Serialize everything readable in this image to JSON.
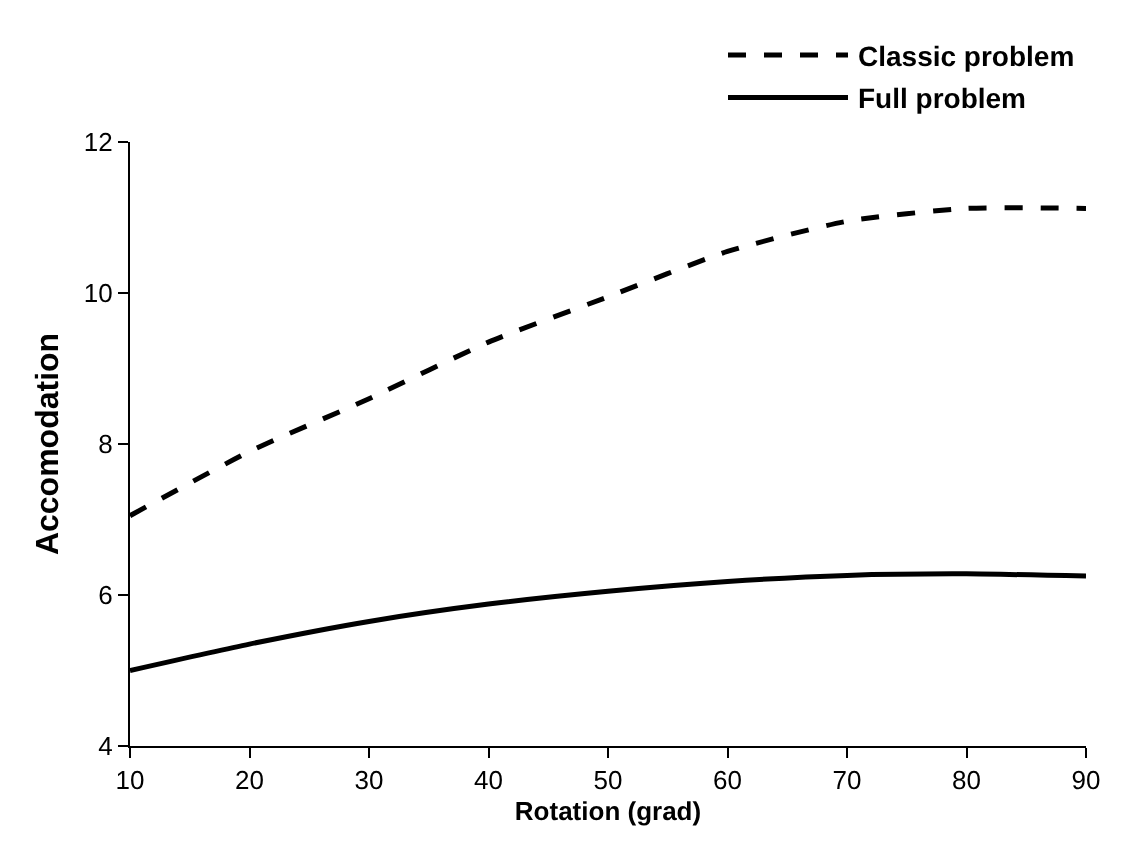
{
  "chart_data": {
    "type": "line",
    "xlabel": "Rotation (grad)",
    "ylabel": "Accomodation",
    "x": [
      10,
      20,
      30,
      40,
      50,
      60,
      70,
      80,
      90
    ],
    "series": [
      {
        "name": "Classic problem",
        "color": "#000000",
        "line_style": "dashed",
        "values": [
          7.05,
          7.9,
          8.6,
          9.35,
          9.95,
          10.55,
          10.95,
          11.12,
          11.12
        ]
      },
      {
        "name": "Full problem",
        "color": "#000000",
        "line_style": "solid",
        "values": [
          5.0,
          5.35,
          5.65,
          5.88,
          6.05,
          6.18,
          6.26,
          6.28,
          6.25
        ]
      }
    ],
    "xlim": [
      10,
      90
    ],
    "ylim": [
      4,
      12
    ],
    "xticks": [
      10,
      20,
      30,
      40,
      50,
      60,
      70,
      80,
      90
    ],
    "yticks": [
      4,
      6,
      8,
      10,
      12
    ],
    "legend": "top right",
    "marker": "none"
  }
}
